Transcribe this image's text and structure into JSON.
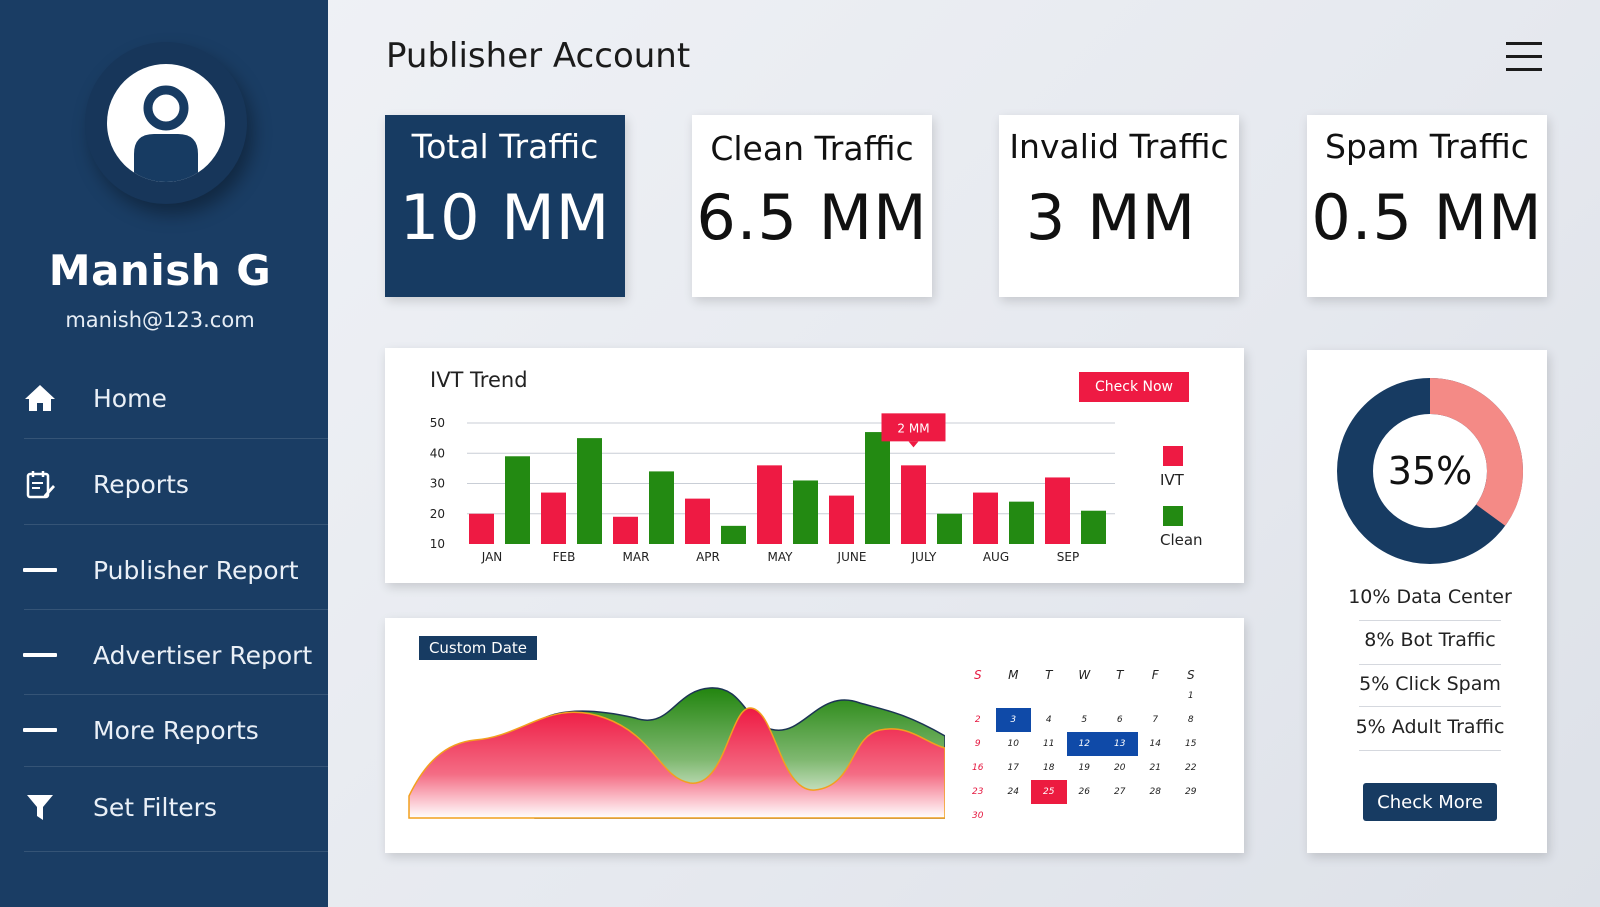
{
  "user": {
    "name": "Manish G",
    "email": "manish@123.com"
  },
  "nav": {
    "items": [
      {
        "label": "Home",
        "icon": "home-icon"
      },
      {
        "label": "Reports",
        "icon": "reports-icon"
      },
      {
        "label": "Publisher Report",
        "icon": "dash-icon"
      },
      {
        "label": "Advertiser Report",
        "icon": "dash-icon"
      },
      {
        "label": "More Reports",
        "icon": "dash-icon"
      },
      {
        "label": "Set Filters",
        "icon": "filter-icon"
      }
    ]
  },
  "header": {
    "title": "Publisher Account",
    "menu_icon": "hamburger-icon"
  },
  "stats": [
    {
      "label": "Total Traffic",
      "value": "10 MM"
    },
    {
      "label": "Clean Traffic",
      "value": "6.5 MM"
    },
    {
      "label": "Invalid Traffic",
      "value": "3 MM"
    },
    {
      "label": "Spam Traffic",
      "value": "0.5 MM"
    }
  ],
  "ivt": {
    "title": "IVT Trend",
    "button": "Check Now",
    "tooltip": "2 MM",
    "legend": [
      "IVT",
      "Clean"
    ]
  },
  "custom": {
    "button": "Custom Date"
  },
  "calendar": {
    "days": [
      "S",
      "M",
      "T",
      "W",
      "T",
      "F",
      "S"
    ],
    "weeks": [
      [
        "",
        "",
        "",
        "",
        "",
        "",
        "1"
      ],
      [
        "2",
        "3",
        "4",
        "5",
        "6",
        "7",
        "8"
      ],
      [
        "9",
        "10",
        "11",
        "12",
        "13",
        "14",
        "15"
      ],
      [
        "16",
        "17",
        "18",
        "19",
        "20",
        "21",
        "22"
      ],
      [
        "23",
        "24",
        "25",
        "26",
        "27",
        "28",
        "29"
      ],
      [
        "30",
        "",
        "",
        "",
        "",
        "",
        ""
      ]
    ],
    "selected_blue": [
      "3",
      "12",
      "13"
    ],
    "selected_red": [
      "25"
    ]
  },
  "breakdown": {
    "percent": "35%",
    "fraction": 0.35,
    "items": [
      "10% Data Center",
      "8% Bot Traffic",
      "5% Click Spam",
      "5% Adult Traffic"
    ],
    "button": "Check More"
  },
  "colors": {
    "navy": "#173b62",
    "red": "#ee1a43",
    "green": "#238a12",
    "donut_light": "#f48a86"
  },
  "chart_data": [
    {
      "type": "bar",
      "title": "IVT Trend",
      "categories": [
        "JAN",
        "FEB",
        "MAR",
        "APR",
        "MAY",
        "JUNE",
        "JULY",
        "AUG",
        "SEP"
      ],
      "ylim": [
        10,
        50
      ],
      "yticks": [
        10,
        20,
        30,
        40,
        50
      ],
      "series": [
        {
          "name": "IVT",
          "values": [
            20,
            27,
            19,
            25,
            36,
            26,
            36,
            27,
            32
          ]
        },
        {
          "name": "Clean",
          "values": [
            39,
            45,
            34,
            16,
            31,
            47,
            20,
            24,
            21
          ]
        }
      ],
      "annotation": {
        "category": "JULY",
        "series": "IVT",
        "text": "2 MM"
      }
    },
    {
      "type": "pie",
      "values": [
        35,
        65
      ],
      "labels": [
        "35%",
        ""
      ]
    }
  ]
}
